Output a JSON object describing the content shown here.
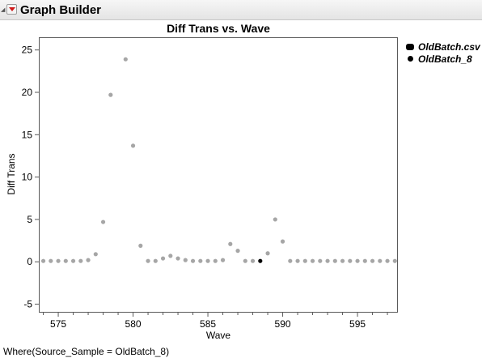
{
  "window": {
    "title": "Graph Builder",
    "menu_icon": "red-triangle-menu-icon",
    "disclosure_icon": "disclosure-icon"
  },
  "footer": {
    "where_clause": "Where(Source_Sample = OldBatch_8)"
  },
  "legend": {
    "items": [
      {
        "label": "OldBatch.csv",
        "marker": "rounded-rect",
        "color": "#000000"
      },
      {
        "label": "OldBatch_8",
        "marker": "dot",
        "color": "#000000"
      }
    ]
  },
  "colors": {
    "point": "#a6a6a6",
    "highlight": "#000000",
    "frame": "#5a5a5a",
    "menu_accent": "#d11a1a"
  },
  "chart_data": {
    "type": "scatter",
    "title": "Diff Trans vs. Wave",
    "xlabel": "Wave",
    "ylabel": "Diff Trans",
    "xlim": [
      573.7,
      597.7
    ],
    "ylim": [
      -6,
      26.5
    ],
    "xticks": [
      575,
      580,
      585,
      590,
      595
    ],
    "yticks": [
      -5,
      0,
      5,
      10,
      15,
      20,
      25
    ],
    "grid": false,
    "legend_position": "right",
    "series": [
      {
        "name": "OldBatch.csv",
        "points": [
          [
            574,
            0.1
          ],
          [
            574.5,
            0.1
          ],
          [
            575,
            0.1
          ],
          [
            575.5,
            0.1
          ],
          [
            576,
            0.1
          ],
          [
            576.5,
            0.1
          ],
          [
            577,
            0.2
          ],
          [
            577.5,
            0.9
          ],
          [
            578,
            4.7
          ],
          [
            578.5,
            19.7
          ],
          [
            579.5,
            23.9
          ],
          [
            580,
            13.7
          ],
          [
            580.5,
            1.9
          ],
          [
            581,
            0.1
          ],
          [
            581.5,
            0.1
          ],
          [
            582,
            0.4
          ],
          [
            582.5,
            0.7
          ],
          [
            583,
            0.4
          ],
          [
            583.5,
            0.2
          ],
          [
            584,
            0.1
          ],
          [
            584.5,
            0.1
          ],
          [
            585,
            0.1
          ],
          [
            585.5,
            0.1
          ],
          [
            586,
            0.2
          ],
          [
            586.5,
            2.1
          ],
          [
            587,
            1.3
          ],
          [
            587.5,
            0.1
          ],
          [
            588,
            0.1
          ],
          [
            589,
            1.0
          ],
          [
            589.5,
            5.0
          ],
          [
            590,
            2.4
          ],
          [
            590.5,
            0.1
          ],
          [
            591,
            0.1
          ],
          [
            591.5,
            0.1
          ],
          [
            592,
            0.1
          ],
          [
            592.5,
            0.1
          ],
          [
            593,
            0.1
          ],
          [
            593.5,
            0.1
          ],
          [
            594,
            0.1
          ],
          [
            594.5,
            0.1
          ],
          [
            595,
            0.1
          ],
          [
            595.5,
            0.1
          ],
          [
            596,
            0.1
          ],
          [
            596.5,
            0.1
          ],
          [
            597,
            0.1
          ],
          [
            597.5,
            0.1
          ]
        ]
      },
      {
        "name": "OldBatch_8",
        "points": [
          [
            588.5,
            0.1
          ]
        ]
      }
    ]
  }
}
